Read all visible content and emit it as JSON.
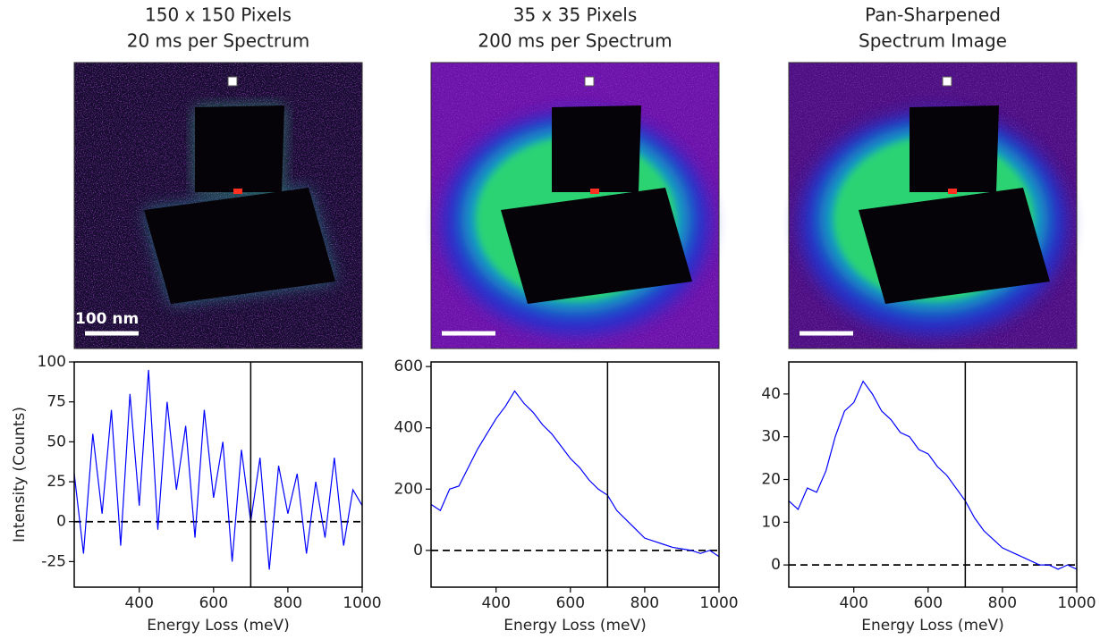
{
  "chart_data": [
    {
      "type": "line",
      "title": "150 x 150 Pixels",
      "subtitle": "20 ms per Spectrum",
      "scale_bar_label": "100 nm",
      "xlabel": "Energy Loss (meV)",
      "ylabel": "Intensity (Counts)",
      "x": [
        225,
        250,
        275,
        300,
        325,
        350,
        375,
        400,
        425,
        450,
        475,
        500,
        525,
        550,
        575,
        600,
        625,
        650,
        675,
        700,
        725,
        750,
        775,
        800,
        825,
        850,
        875,
        900,
        925,
        950,
        975,
        1000
      ],
      "series": [
        {
          "color": "#0000ff",
          "values": [
            30,
            -20,
            55,
            5,
            70,
            -15,
            80,
            10,
            95,
            -5,
            75,
            20,
            60,
            -10,
            70,
            15,
            50,
            -25,
            45,
            0,
            40,
            -30,
            35,
            5,
            30,
            -20,
            25,
            -10,
            40,
            -15,
            20,
            10
          ]
        }
      ],
      "xlim": [
        225,
        1000
      ],
      "xticks": [
        400,
        600,
        800,
        1000
      ],
      "ylim": [
        -41,
        100
      ],
      "yticks": [
        -25,
        0,
        25,
        50,
        75,
        100
      ],
      "vline": 700,
      "hline": 0
    },
    {
      "type": "line",
      "title": "35 x 35 Pixels",
      "subtitle": "200 ms per Spectrum",
      "xlabel": "Energy Loss (meV)",
      "x": [
        225,
        250,
        275,
        300,
        325,
        350,
        375,
        400,
        425,
        450,
        475,
        500,
        525,
        550,
        575,
        600,
        625,
        650,
        675,
        700,
        725,
        750,
        775,
        800,
        825,
        850,
        875,
        900,
        925,
        950,
        975,
        1000
      ],
      "series": [
        {
          "color": "#0000ff",
          "values": [
            150,
            130,
            200,
            210,
            270,
            330,
            380,
            430,
            470,
            520,
            480,
            450,
            410,
            380,
            340,
            300,
            270,
            230,
            200,
            180,
            130,
            100,
            70,
            40,
            30,
            20,
            10,
            5,
            0,
            -10,
            0,
            -20
          ]
        }
      ],
      "xlim": [
        225,
        1000
      ],
      "xticks": [
        400,
        600,
        800,
        1000
      ],
      "ylim": [
        -120,
        615
      ],
      "yticks": [
        0,
        200,
        400,
        600
      ],
      "vline": 700,
      "hline": 0
    },
    {
      "type": "line",
      "title": "Pan-Sharpened",
      "subtitle": "Spectrum Image",
      "xlabel": "Energy Loss (meV)",
      "x": [
        225,
        250,
        275,
        300,
        325,
        350,
        375,
        400,
        425,
        450,
        475,
        500,
        525,
        550,
        575,
        600,
        625,
        650,
        675,
        700,
        725,
        750,
        775,
        800,
        825,
        850,
        875,
        900,
        925,
        950,
        975,
        1000
      ],
      "series": [
        {
          "color": "#0000ff",
          "values": [
            15,
            13,
            18,
            17,
            22,
            30,
            36,
            38,
            43,
            40,
            36,
            34,
            31,
            30,
            27,
            26,
            23,
            21,
            18,
            15,
            11,
            8,
            6,
            4,
            3,
            2,
            1,
            0,
            0,
            -1,
            0,
            -1
          ]
        }
      ],
      "xlim": [
        225,
        1000
      ],
      "xticks": [
        400,
        600,
        800,
        1000
      ],
      "ylim": [
        -5.2,
        47.5
      ],
      "yticks": [
        0,
        10,
        20,
        30,
        40
      ],
      "vline": 700,
      "hline": 0
    }
  ]
}
